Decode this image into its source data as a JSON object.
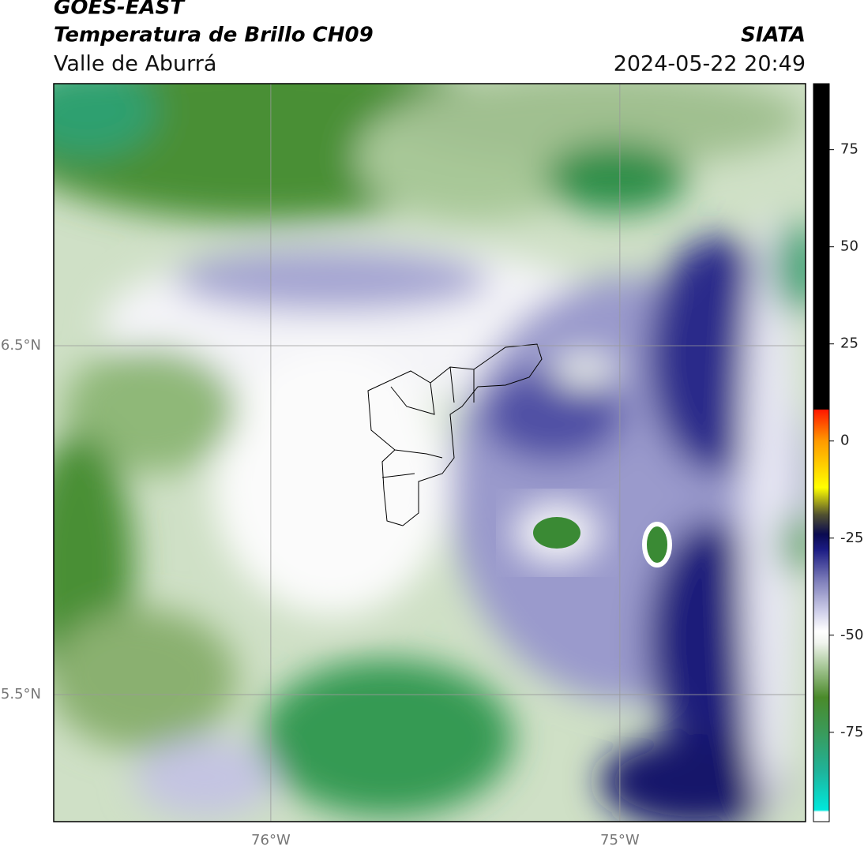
{
  "header": {
    "source": "GOES-EAST",
    "product": "Temperatura de Brillo CH09",
    "region": "Valle de Aburrá",
    "agency": "SIATA",
    "datetime": "2024-05-22 20:49"
  },
  "map": {
    "xlim": [
      -76.622,
      -74.468
    ],
    "ylim": [
      5.136,
      7.251
    ],
    "xticks": [
      {
        "value": -76,
        "label": "76°W"
      },
      {
        "value": -75,
        "label": "75°W"
      }
    ],
    "yticks": [
      {
        "value": 6.5,
        "label": "6.5°N"
      },
      {
        "value": 5.5,
        "label": "5.5°N"
      }
    ],
    "grid": true
  },
  "colorbar": {
    "clim": [
      -98,
      92
    ],
    "ticks": [
      75,
      50,
      25,
      0,
      -25,
      -50,
      -75
    ],
    "colors": [
      {
        "value": -98,
        "color": "#ffffff"
      },
      {
        "value": -95.5,
        "color": "#ffffff"
      },
      {
        "value": -95,
        "color": "#00e8dc"
      },
      {
        "value": -85,
        "color": "#1fb39a"
      },
      {
        "value": -75,
        "color": "#3a9a5a"
      },
      {
        "value": -66,
        "color": "#4a8a2a"
      },
      {
        "value": -58,
        "color": "#a8c898"
      },
      {
        "value": -52,
        "color": "#f0f4ee"
      },
      {
        "value": -49,
        "color": "#ffffff"
      },
      {
        "value": -44,
        "color": "#d0d0ea"
      },
      {
        "value": -36,
        "color": "#7e7eba"
      },
      {
        "value": -28,
        "color": "#1c1c84"
      },
      {
        "value": -24,
        "color": "#0a0a50"
      },
      {
        "value": -19,
        "color": "#505030"
      },
      {
        "value": -12,
        "color": "#ffff00"
      },
      {
        "value": 0,
        "color": "#ff9a00"
      },
      {
        "value": 8,
        "color": "#ff1800"
      },
      {
        "value": 8.2,
        "color": "#000000"
      },
      {
        "value": 92,
        "color": "#000000"
      }
    ]
  }
}
